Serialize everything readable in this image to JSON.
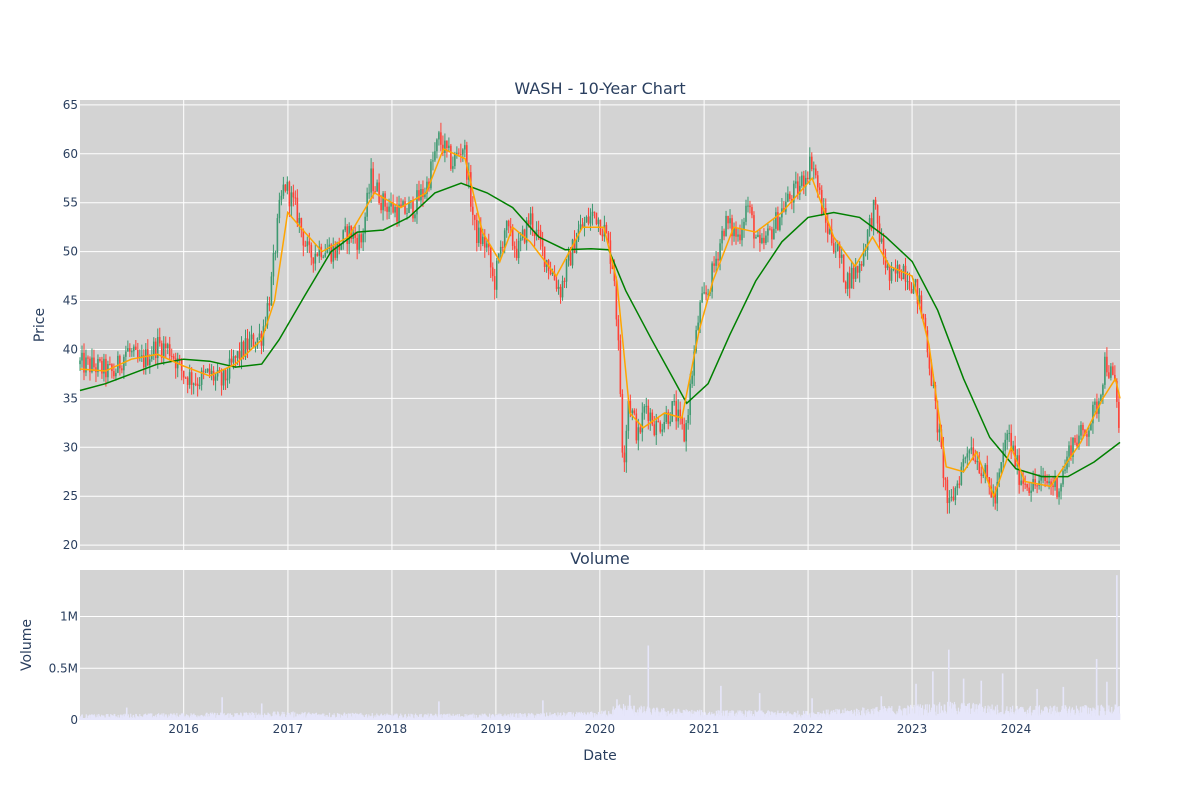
{
  "chart_data": [
    {
      "type": "candlestick",
      "title": "WASH - 10-Year Chart",
      "ylabel": "Price",
      "ylim": [
        19.5,
        65.5
      ],
      "yticks": [
        20,
        25,
        30,
        35,
        40,
        45,
        50,
        55,
        60,
        65
      ],
      "xlim": [
        "2015-01-02",
        "2024-12-31"
      ],
      "xticks": [
        "2016",
        "2017",
        "2018",
        "2019",
        "2020",
        "2021",
        "2022",
        "2023",
        "2024"
      ],
      "grid": true,
      "legend": "none",
      "colors": {
        "plot_bg": "#d3d3d3",
        "increasing": "#3d9970",
        "decreasing": "#ff4136",
        "short_ma": "#ffa500",
        "long_ma": "#008000"
      },
      "price_path": [
        [
          "2015-01-02",
          38.5
        ],
        [
          "2015-03-01",
          38.2
        ],
        [
          "2015-05-01",
          37.5
        ],
        [
          "2015-06-15",
          40.0
        ],
        [
          "2015-08-01",
          38.5
        ],
        [
          "2015-10-01",
          40.5
        ],
        [
          "2015-11-15",
          40.0
        ],
        [
          "2016-01-01",
          37.5
        ],
        [
          "2016-02-15",
          36.8
        ],
        [
          "2016-04-01",
          37.5
        ],
        [
          "2016-05-15",
          36.5
        ],
        [
          "2016-07-01",
          39.0
        ],
        [
          "2016-08-15",
          40.5
        ],
        [
          "2016-10-01",
          41.5
        ],
        [
          "2016-11-01",
          46.0
        ],
        [
          "2016-12-01",
          54.0
        ],
        [
          "2016-12-20",
          57.0
        ],
        [
          "2017-02-01",
          54.0
        ],
        [
          "2017-03-15",
          49.5
        ],
        [
          "2017-05-01",
          50.5
        ],
        [
          "2017-06-15",
          50.0
        ],
        [
          "2017-08-01",
          52.0
        ],
        [
          "2017-09-15",
          51.0
        ],
        [
          "2017-10-20",
          57.5
        ],
        [
          "2017-12-01",
          55.0
        ],
        [
          "2018-02-01",
          54.0
        ],
        [
          "2018-03-15",
          54.5
        ],
        [
          "2018-05-01",
          56.5
        ],
        [
          "2018-06-15",
          61.5
        ],
        [
          "2018-08-01",
          59.0
        ],
        [
          "2018-09-10",
          61.0
        ],
        [
          "2018-10-20",
          52.0
        ],
        [
          "2018-12-01",
          50.5
        ],
        [
          "2018-12-25",
          46.5
        ],
        [
          "2019-02-01",
          52.5
        ],
        [
          "2019-03-20",
          50.0
        ],
        [
          "2019-05-01",
          53.5
        ],
        [
          "2019-06-15",
          50.0
        ],
        [
          "2019-08-15",
          46.0
        ],
        [
          "2019-10-15",
          52.0
        ],
        [
          "2019-12-15",
          54.0
        ],
        [
          "2020-01-20",
          52.0
        ],
        [
          "2020-02-20",
          48.0
        ],
        [
          "2020-03-10",
          38.0
        ],
        [
          "2020-03-23",
          28.0
        ],
        [
          "2020-04-10",
          35.0
        ],
        [
          "2020-05-15",
          31.0
        ],
        [
          "2020-06-10",
          34.5
        ],
        [
          "2020-07-15",
          32.0
        ],
        [
          "2020-09-15",
          34.0
        ],
        [
          "2020-10-25",
          31.0
        ],
        [
          "2020-11-15",
          36.5
        ],
        [
          "2020-12-15",
          44.0
        ],
        [
          "2021-01-15",
          46.0
        ],
        [
          "2021-03-15",
          53.0
        ],
        [
          "2021-05-01",
          51.5
        ],
        [
          "2021-06-01",
          55.0
        ],
        [
          "2021-07-15",
          50.0
        ],
        [
          "2021-09-01",
          52.5
        ],
        [
          "2021-10-15",
          55.0
        ],
        [
          "2021-12-01",
          56.5
        ],
        [
          "2022-01-15",
          59.5
        ],
        [
          "2022-03-01",
          53.0
        ],
        [
          "2022-04-15",
          50.0
        ],
        [
          "2022-05-15",
          47.0
        ],
        [
          "2022-07-01",
          48.5
        ],
        [
          "2022-08-20",
          54.5
        ],
        [
          "2022-09-20",
          50.0
        ],
        [
          "2022-10-15",
          47.0
        ],
        [
          "2022-12-01",
          48.5
        ],
        [
          "2023-01-15",
          46.0
        ],
        [
          "2023-02-15",
          42.5
        ],
        [
          "2023-03-15",
          36.0
        ],
        [
          "2023-04-15",
          29.0
        ],
        [
          "2023-05-10",
          23.5
        ],
        [
          "2023-06-15",
          27.0
        ],
        [
          "2023-07-20",
          30.5
        ],
        [
          "2023-09-01",
          28.0
        ],
        [
          "2023-10-20",
          24.5
        ],
        [
          "2023-12-01",
          31.5
        ],
        [
          "2024-01-15",
          27.0
        ],
        [
          "2024-03-01",
          26.0
        ],
        [
          "2024-04-15",
          26.5
        ],
        [
          "2024-06-01",
          26.0
        ],
        [
          "2024-07-15",
          30.5
        ],
        [
          "2024-08-30",
          31.5
        ],
        [
          "2024-10-15",
          34.5
        ],
        [
          "2024-11-10",
          39.0
        ],
        [
          "2024-12-15",
          36.0
        ],
        [
          "2024-12-31",
          31.0
        ]
      ],
      "short_ma_path": [
        [
          "2015-01-02",
          38.0
        ],
        [
          "2015-04-01",
          37.8
        ],
        [
          "2015-07-01",
          39.0
        ],
        [
          "2015-10-01",
          39.5
        ],
        [
          "2016-01-01",
          38.3
        ],
        [
          "2016-04-01",
          37.3
        ],
        [
          "2016-07-01",
          38.5
        ],
        [
          "2016-10-01",
          41.0
        ],
        [
          "2016-11-15",
          45.0
        ],
        [
          "2016-12-31",
          54.0
        ],
        [
          "2017-03-01",
          52.0
        ],
        [
          "2017-05-01",
          50.0
        ],
        [
          "2017-08-01",
          51.5
        ],
        [
          "2017-11-01",
          56.0
        ],
        [
          "2018-02-01",
          54.5
        ],
        [
          "2018-05-01",
          56.0
        ],
        [
          "2018-07-01",
          60.5
        ],
        [
          "2018-09-15",
          59.5
        ],
        [
          "2018-11-15",
          52.0
        ],
        [
          "2019-01-15",
          49.0
        ],
        [
          "2019-03-01",
          52.5
        ],
        [
          "2019-05-01",
          51.0
        ],
        [
          "2019-08-01",
          47.5
        ],
        [
          "2019-11-01",
          52.5
        ],
        [
          "2020-01-15",
          52.5
        ],
        [
          "2020-03-01",
          47.0
        ],
        [
          "2020-04-15",
          33.5
        ],
        [
          "2020-06-01",
          32.0
        ],
        [
          "2020-08-15",
          33.5
        ],
        [
          "2020-10-15",
          33.0
        ],
        [
          "2020-12-15",
          42.0
        ],
        [
          "2021-02-01",
          47.0
        ],
        [
          "2021-04-15",
          52.5
        ],
        [
          "2021-07-01",
          52.0
        ],
        [
          "2021-10-01",
          54.0
        ],
        [
          "2022-01-15",
          57.5
        ],
        [
          "2022-04-01",
          51.5
        ],
        [
          "2022-06-15",
          48.5
        ],
        [
          "2022-08-15",
          51.5
        ],
        [
          "2022-10-15",
          48.5
        ],
        [
          "2023-01-01",
          47.5
        ],
        [
          "2023-03-01",
          40.5
        ],
        [
          "2023-05-01",
          28.0
        ],
        [
          "2023-07-01",
          27.5
        ],
        [
          "2023-08-15",
          29.5
        ],
        [
          "2023-10-15",
          25.0
        ],
        [
          "2023-12-15",
          30.0
        ],
        [
          "2024-02-01",
          26.5
        ],
        [
          "2024-05-01",
          26.0
        ],
        [
          "2024-08-15",
          30.5
        ],
        [
          "2024-11-01",
          35.0
        ],
        [
          "2024-12-15",
          37.0
        ],
        [
          "2024-12-31",
          35.0
        ]
      ],
      "long_ma_path": [
        [
          "2015-01-02",
          35.8
        ],
        [
          "2015-04-01",
          36.5
        ],
        [
          "2015-07-01",
          37.5
        ],
        [
          "2015-10-01",
          38.5
        ],
        [
          "2016-01-01",
          39.0
        ],
        [
          "2016-04-01",
          38.8
        ],
        [
          "2016-07-01",
          38.2
        ],
        [
          "2016-10-01",
          38.5
        ],
        [
          "2016-12-01",
          41.0
        ],
        [
          "2017-03-01",
          45.5
        ],
        [
          "2017-06-01",
          50.0
        ],
        [
          "2017-09-01",
          52.0
        ],
        [
          "2017-12-01",
          52.2
        ],
        [
          "2018-03-01",
          53.5
        ],
        [
          "2018-06-01",
          56.0
        ],
        [
          "2018-09-01",
          57.0
        ],
        [
          "2018-12-01",
          56.0
        ],
        [
          "2019-03-01",
          54.5
        ],
        [
          "2019-06-01",
          51.5
        ],
        [
          "2019-09-01",
          50.2
        ],
        [
          "2019-12-01",
          50.3
        ],
        [
          "2020-02-01",
          50.2
        ],
        [
          "2020-04-01",
          46.0
        ],
        [
          "2020-07-01",
          41.0
        ],
        [
          "2020-09-15",
          37.0
        ],
        [
          "2020-11-01",
          34.5
        ],
        [
          "2021-01-15",
          36.5
        ],
        [
          "2021-04-01",
          41.5
        ],
        [
          "2021-07-01",
          47.0
        ],
        [
          "2021-10-01",
          51.0
        ],
        [
          "2022-01-01",
          53.5
        ],
        [
          "2022-04-01",
          54.0
        ],
        [
          "2022-07-01",
          53.5
        ],
        [
          "2022-10-01",
          51.5
        ],
        [
          "2023-01-01",
          49.0
        ],
        [
          "2023-04-01",
          44.0
        ],
        [
          "2023-07-01",
          37.0
        ],
        [
          "2023-10-01",
          31.0
        ],
        [
          "2024-01-01",
          27.8
        ],
        [
          "2024-04-01",
          27.0
        ],
        [
          "2024-07-01",
          27.0
        ],
        [
          "2024-10-01",
          28.5
        ],
        [
          "2024-12-31",
          30.5
        ]
      ]
    },
    {
      "type": "bar",
      "title": "Volume",
      "xlabel": "Date",
      "ylabel": "Volume",
      "ylim": [
        0,
        1450000
      ],
      "yticks": [
        {
          "value": 0,
          "label": "0"
        },
        {
          "value": 500000,
          "label": "0.5M"
        },
        {
          "value": 1000000,
          "label": "1M"
        }
      ],
      "grid": true,
      "colors": {
        "plot_bg": "#d3d3d3",
        "bar": "#e6e6fa"
      },
      "volume_baseline": [
        [
          "2015-01-02",
          40000
        ],
        [
          "2016-01-01",
          50000
        ],
        [
          "2017-01-01",
          60000
        ],
        [
          "2018-01-01",
          45000
        ],
        [
          "2019-01-01",
          45000
        ],
        [
          "2020-01-01",
          60000
        ],
        [
          "2020-03-15",
          120000
        ],
        [
          "2020-07-01",
          90000
        ],
        [
          "2021-01-01",
          70000
        ],
        [
          "2022-01-01",
          65000
        ],
        [
          "2023-01-01",
          110000
        ],
        [
          "2023-06-01",
          130000
        ],
        [
          "2024-01-01",
          100000
        ],
        [
          "2024-12-31",
          110000
        ]
      ],
      "volume_spikes": [
        [
          "2015-06-15",
          120000
        ],
        [
          "2016-05-15",
          220000
        ],
        [
          "2016-10-01",
          160000
        ],
        [
          "2018-06-15",
          180000
        ],
        [
          "2019-06-15",
          190000
        ],
        [
          "2020-03-01",
          200000
        ],
        [
          "2020-06-19",
          720000
        ],
        [
          "2020-04-15",
          240000
        ],
        [
          "2021-03-01",
          330000
        ],
        [
          "2021-07-15",
          260000
        ],
        [
          "2022-01-15",
          210000
        ],
        [
          "2022-09-15",
          230000
        ],
        [
          "2023-01-15",
          350000
        ],
        [
          "2023-03-15",
          470000
        ],
        [
          "2023-05-10",
          680000
        ],
        [
          "2023-07-01",
          400000
        ],
        [
          "2023-09-01",
          380000
        ],
        [
          "2023-11-15",
          450000
        ],
        [
          "2024-03-15",
          300000
        ],
        [
          "2024-06-15",
          320000
        ],
        [
          "2024-10-10",
          590000
        ],
        [
          "2024-11-15",
          370000
        ],
        [
          "2024-12-20",
          1400000
        ]
      ]
    }
  ]
}
